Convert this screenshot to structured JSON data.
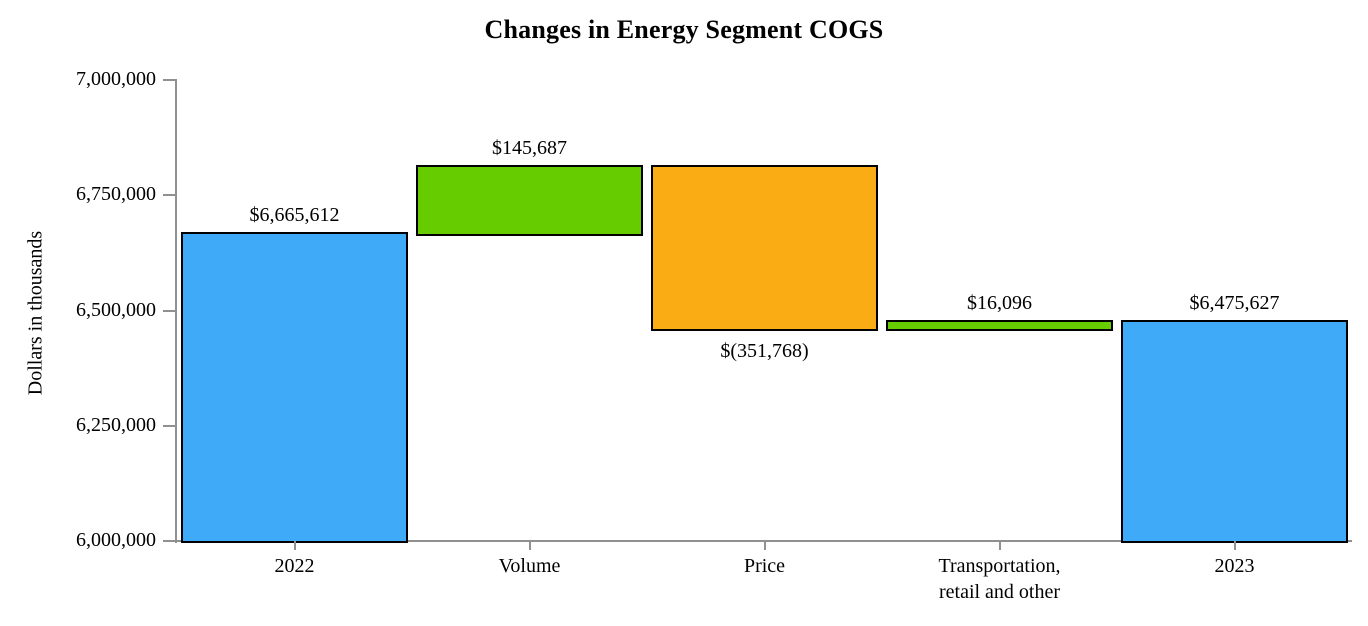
{
  "chart_data": {
    "type": "bar",
    "subtype": "waterfall",
    "title": "Changes in Energy Segment COGS",
    "ylabel": "Dollars in thousands",
    "ylim": [
      6000000,
      7000000
    ],
    "ytick_interval": 250000,
    "yticks": [
      "7,000,000",
      "6,750,000",
      "6,500,000",
      "6,250,000",
      "6,000,000"
    ],
    "grid": "off",
    "legend": "none",
    "bars": [
      {
        "category": [
          "2022"
        ],
        "label": "$6,665,612",
        "label_pos": "above",
        "start": 6000000,
        "end": 6665612,
        "value": 6665612,
        "color_key": "total"
      },
      {
        "category": [
          "Volume"
        ],
        "label": "$145,687",
        "label_pos": "above",
        "start": 6665612,
        "end": 6811299,
        "value": 145687,
        "color_key": "increase"
      },
      {
        "category": [
          "Price"
        ],
        "label": "$(351,768)",
        "label_pos": "below",
        "start": 6811299,
        "end": 6459531,
        "value": -351768,
        "color_key": "decrease"
      },
      {
        "category": [
          "Transportation,",
          "retail and other"
        ],
        "label": "$16,096",
        "label_pos": "above",
        "start": 6459531,
        "end": 6475627,
        "value": 16096,
        "color_key": "increase"
      },
      {
        "category": [
          "2023"
        ],
        "label": "$6,475,627",
        "label_pos": "above",
        "start": 6000000,
        "end": 6475627,
        "value": 6475627,
        "color_key": "total"
      }
    ],
    "colors": {
      "total": "#3FAAF8",
      "increase": "#66CC00",
      "decrease": "#FAAC15",
      "bar_border": "#000000",
      "axis": "#909090",
      "text": "#000000"
    }
  }
}
